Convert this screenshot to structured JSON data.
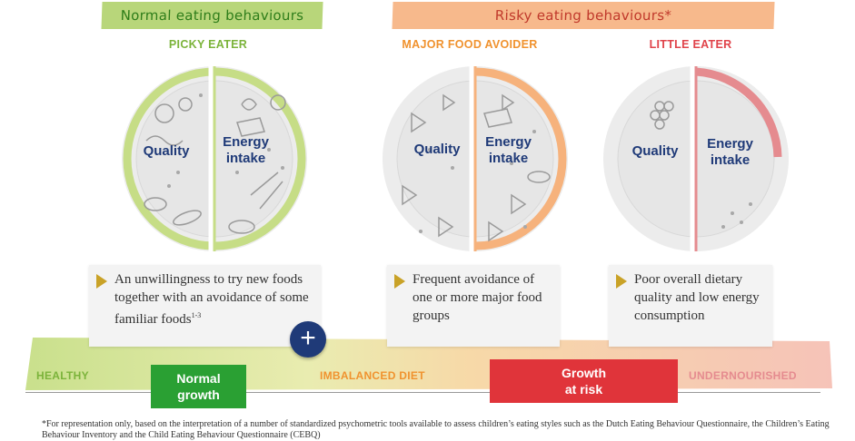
{
  "banners": {
    "normal": "Normal eating behaviours",
    "risky": "Risky eating behaviours*"
  },
  "plates": [
    {
      "title": "PICKY EATER",
      "title_color": "#7bb33a",
      "left": "Quality",
      "right": "Energy\nintake",
      "ring_color": "#c6dd86",
      "ring_fraction": 1.0
    },
    {
      "title": "MAJOR FOOD AVOIDER",
      "title_color": "#f0922e",
      "left": "Quality",
      "right": "Energy\nintake",
      "ring_color": "#f6b27c",
      "ring_fraction": 0.5
    },
    {
      "title": "LITTLE EATER",
      "title_color": "#e0434a",
      "left": "Quality",
      "right": "Energy\nintake",
      "ring_color": "#e58b8f",
      "ring_fraction": 0.2
    }
  ],
  "cards": [
    {
      "text": "An unwillingness to try new foods together with an avoidance of some familiar foods",
      "sup": "1-3"
    },
    {
      "text": "Frequent avoidance of one or more major food groups",
      "sup": ""
    },
    {
      "text": "Poor overall dietary quality and low energy consumption",
      "sup": ""
    }
  ],
  "plus_symbol": "+",
  "spectrum": {
    "healthy": "HEALTHY",
    "imbalanced": "IMBALANCED DIET",
    "undernourished": "UNDERNOURISHED",
    "normal_growth": [
      "Normal",
      "growth"
    ],
    "growth_at_risk": [
      "Growth",
      "at risk"
    ]
  },
  "colors": {
    "green": "#2aa033",
    "red": "#e0343a",
    "navy": "#1f3a78",
    "orange": "#f0922e"
  },
  "footnote": "*For representation only, based on the interpretation of a number of standardized psychometric tools available to assess children’s eating styles such as the Dutch Eating Behaviour Questionnaire, the Children’s Eating Behaviour Inventory and the Child Eating Behaviour Questionnaire (CEBQ)"
}
